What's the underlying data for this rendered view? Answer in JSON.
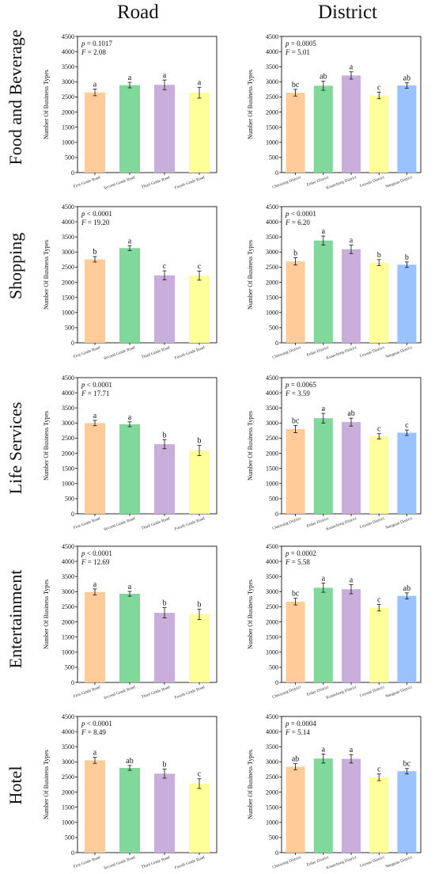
{
  "column_headers": [
    "Road",
    "District"
  ],
  "row_labels": [
    "Food and Beverage",
    "Shopping",
    "Life Services",
    "Entertainment",
    "Hotel"
  ],
  "colors": {
    "First Grade Road": "#FFCC99",
    "Second Grade Road": "#80D99A",
    "Third Grade Road": "#C9AEDB",
    "Fourth Grade Road": "#FFFF99",
    "Chaoyang District": "#FFCC99",
    "Erdao District": "#80D99A",
    "Kuancheng District": "#C9AEDB",
    "Luyuan District": "#FFFF99",
    "Nanguan District": "#99C2FF"
  },
  "chart_data": [
    {
      "type": "bar",
      "row": "Food and Beverage",
      "column": "Road",
      "categories": [
        "First Grade Road",
        "Second Grade Road",
        "Third Grade Road",
        "Fourth Grade Road"
      ],
      "values": [
        2650,
        2890,
        2900,
        2640
      ],
      "errors": [
        110,
        90,
        160,
        180
      ],
      "letters": [
        "a",
        "a",
        "a",
        "a"
      ],
      "p_text": "p = 0.1017",
      "F_text": "F = 2.08",
      "ylabel": "Number Of Business Types",
      "ylim": [
        0,
        4500
      ],
      "yticks": [
        0,
        500,
        1000,
        1500,
        2000,
        2500,
        3000,
        3500,
        4000,
        4500
      ]
    },
    {
      "type": "bar",
      "row": "Food and Beverage",
      "column": "District",
      "categories": [
        "Chaoyang District",
        "Erdao District",
        "Kuancheng District",
        "Luyuan District",
        "Nanguan District"
      ],
      "values": [
        2640,
        2870,
        3210,
        2550,
        2880
      ],
      "errors": [
        110,
        150,
        120,
        110,
        90
      ],
      "letters": [
        "bc",
        "ab",
        "a",
        "c",
        "ab"
      ],
      "p_text": "p = 0.0005",
      "F_text": "F = 5.01",
      "ylabel": "Number Of Business Types",
      "ylim": [
        0,
        4500
      ],
      "yticks": [
        0,
        500,
        1000,
        1500,
        2000,
        2500,
        3000,
        3500,
        4000,
        4500
      ]
    },
    {
      "type": "bar",
      "row": "Shopping",
      "column": "Road",
      "categories": [
        "First Grade Road",
        "Second Grade Road",
        "Third Grade Road",
        "Fourth Grade Road"
      ],
      "values": [
        2760,
        3130,
        2230,
        2220
      ],
      "errors": [
        90,
        80,
        150,
        150
      ],
      "letters": [
        "b",
        "a",
        "c",
        "c"
      ],
      "p_text": "p < 0.0001",
      "F_text": "F = 19.20",
      "ylabel": "Number Of Business Types",
      "ylim": [
        0,
        4500
      ],
      "yticks": [
        0,
        500,
        1000,
        1500,
        2000,
        2500,
        3000,
        3500,
        4000,
        4500
      ]
    },
    {
      "type": "bar",
      "row": "Shopping",
      "column": "District",
      "categories": [
        "Chaoyang District",
        "Erdao District",
        "Kuancheng District",
        "Luyuan District",
        "Nanguan District"
      ],
      "values": [
        2690,
        3380,
        3090,
        2650,
        2580
      ],
      "errors": [
        120,
        150,
        140,
        100,
        90
      ],
      "letters": [
        "b",
        "a",
        "a",
        "b",
        "b"
      ],
      "p_text": "p < 0.0001",
      "F_text": "F = 6.20",
      "ylabel": "Number Of Business Types",
      "ylim": [
        0,
        4500
      ],
      "yticks": [
        0,
        500,
        1000,
        1500,
        2000,
        2500,
        3000,
        3500,
        4000,
        4500
      ]
    },
    {
      "type": "bar",
      "row": "Life Services",
      "column": "Road",
      "categories": [
        "First Grade Road",
        "Second Grade Road",
        "Third Grade Road",
        "Fourth Grade Road"
      ],
      "values": [
        3000,
        2960,
        2300,
        2090
      ],
      "errors": [
        90,
        80,
        150,
        170
      ],
      "letters": [
        "a",
        "a",
        "b",
        "b"
      ],
      "p_text": "p < 0.0001",
      "F_text": "F = 17.71",
      "ylabel": "Number Of Business Types",
      "ylim": [
        0,
        4500
      ],
      "yticks": [
        0,
        500,
        1000,
        1500,
        2000,
        2500,
        3000,
        3500,
        4000,
        4500
      ]
    },
    {
      "type": "bar",
      "row": "Life Services",
      "column": "District",
      "categories": [
        "Chaoyang District",
        "Erdao District",
        "Kuancheng District",
        "Luyuan District",
        "Nanguan District"
      ],
      "values": [
        2800,
        3160,
        3030,
        2560,
        2680
      ],
      "errors": [
        120,
        160,
        130,
        90,
        90
      ],
      "letters": [
        "bc",
        "a",
        "ab",
        "c",
        "c"
      ],
      "p_text": "p = 0.0065",
      "F_text": "F = 3.59",
      "ylabel": "Number Of Business Types",
      "ylim": [
        0,
        4500
      ],
      "yticks": [
        0,
        500,
        1000,
        1500,
        2000,
        2500,
        3000,
        3500,
        4000,
        4500
      ]
    },
    {
      "type": "bar",
      "row": "Entertainment",
      "column": "Road",
      "categories": [
        "First Grade Road",
        "Second Grade Road",
        "Third Grade Road",
        "Fourth Grade Road"
      ],
      "values": [
        2990,
        2930,
        2300,
        2250
      ],
      "errors": [
        100,
        80,
        170,
        170
      ],
      "letters": [
        "a",
        "a",
        "b",
        "b"
      ],
      "p_text": "p < 0.0001",
      "F_text": "F = 12.69",
      "ylabel": "Number Of Business Types",
      "ylim": [
        0,
        4500
      ],
      "yticks": [
        0,
        500,
        1000,
        1500,
        2000,
        2500,
        3000,
        3500,
        4000,
        4500
      ]
    },
    {
      "type": "bar",
      "row": "Entertainment",
      "column": "District",
      "categories": [
        "Chaoyang District",
        "Erdao District",
        "Kuancheng District",
        "Luyuan District",
        "Nanguan District"
      ],
      "values": [
        2670,
        3130,
        3080,
        2470,
        2860
      ],
      "errors": [
        110,
        150,
        150,
        110,
        100
      ],
      "letters": [
        "bc",
        "a",
        "a",
        "c",
        "ab"
      ],
      "p_text": "p = 0.0002",
      "F_text": "F = 5.58",
      "ylabel": "Number Of Business Types",
      "ylim": [
        0,
        4500
      ],
      "yticks": [
        0,
        500,
        1000,
        1500,
        2000,
        2500,
        3000,
        3500,
        4000,
        4500
      ]
    },
    {
      "type": "bar",
      "row": "Hotel",
      "column": "Road",
      "categories": [
        "First Grade Road",
        "Second Grade Road",
        "Third Grade Road",
        "Fourth Grade Road"
      ],
      "values": [
        3050,
        2800,
        2610,
        2280
      ],
      "errors": [
        100,
        80,
        150,
        160
      ],
      "letters": [
        "a",
        "ab",
        "b",
        "c"
      ],
      "p_text": "p < 0.0001",
      "F_text": "F = 8.49",
      "ylabel": "Number Of Business Types",
      "ylim": [
        0,
        4500
      ],
      "yticks": [
        0,
        500,
        1000,
        1500,
        2000,
        2500,
        3000,
        3500,
        4000,
        4500
      ]
    },
    {
      "type": "bar",
      "row": "Hotel",
      "column": "District",
      "categories": [
        "Chaoyang District",
        "Erdao District",
        "Kuancheng District",
        "Luyuan District",
        "Nanguan District"
      ],
      "values": [
        2840,
        3110,
        3100,
        2490,
        2690
      ],
      "errors": [
        100,
        150,
        140,
        110,
        90
      ],
      "letters": [
        "ab",
        "a",
        "a",
        "c",
        "bc"
      ],
      "p_text": "p = 0.0004",
      "F_text": "F = 5.14",
      "ylabel": "Number Of Business Types",
      "ylim": [
        0,
        4500
      ],
      "yticks": [
        0,
        500,
        1000,
        1500,
        2000,
        2500,
        3000,
        3500,
        4000,
        4500
      ]
    }
  ]
}
